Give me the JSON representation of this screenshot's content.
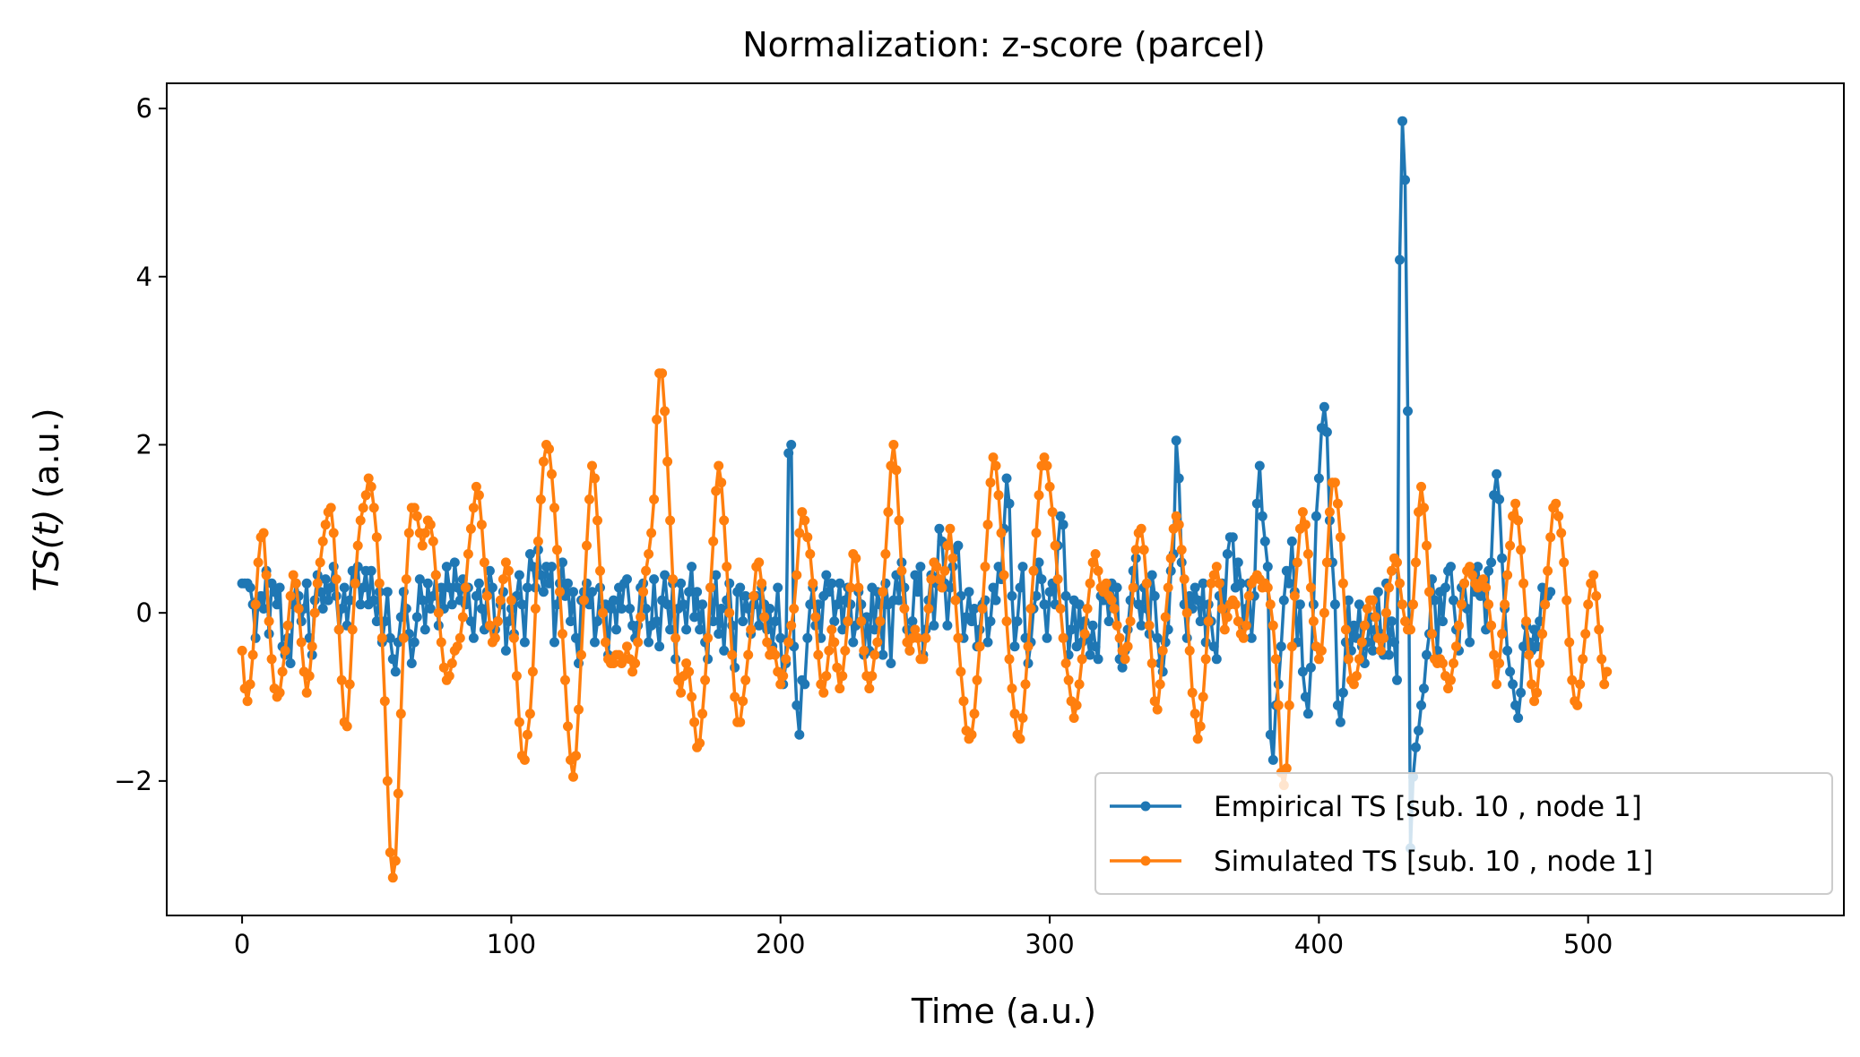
{
  "chart_data": {
    "type": "line",
    "title": "Normalization: z-score (parcel)",
    "xlabel": "Time (a.u.)",
    "ylabel_italic": "TS(t)",
    "ylabel_rest": " (a.u.)",
    "xlim": [
      -28,
      595
    ],
    "ylim": [
      -3.6,
      6.3
    ],
    "xticks": [
      0,
      100,
      200,
      300,
      400,
      500
    ],
    "yticks": [
      -2,
      0,
      2,
      4,
      6
    ],
    "yticks_display": [
      "−2",
      "0",
      "2",
      "4",
      "6"
    ],
    "legend_position": "lower right",
    "series": [
      {
        "name": "Empirical TS [sub. 10 , node 1]",
        "color": "#1f77b4",
        "values": [
          0.35,
          0.35,
          0.35,
          0.3,
          0.1,
          -0.3,
          0.15,
          0.2,
          0.05,
          0.5,
          -0.25,
          0.35,
          0.25,
          0.1,
          0.3,
          -0.4,
          -0.5,
          -0.3,
          -0.6,
          0.1,
          0.35,
          0.2,
          -0.1,
          0.05,
          0.35,
          -0.3,
          -0.5,
          0.15,
          0.45,
          0.25,
          0.05,
          0.4,
          0.15,
          0.3,
          0.55,
          0.2,
          -0.2,
          0.05,
          0.3,
          -0.15,
          0.15,
          0.5,
          0.35,
          0.55,
          0.1,
          0.3,
          0.5,
          0.1,
          0.5,
          0.15,
          -0.1,
          0.25,
          -0.35,
          -0.1,
          0.25,
          -0.3,
          -0.55,
          -0.7,
          -0.35,
          -0.05,
          0.25,
          0.05,
          -0.25,
          -0.6,
          -0.35,
          -0.05,
          0.4,
          0.15,
          -0.2,
          0.35,
          0.05,
          0.2,
          0.45,
          -0.15,
          0.3,
          0.05,
          0.55,
          0.3,
          0.1,
          0.6,
          0.3,
          0.15,
          0.4,
          0.1,
          0.3,
          -0.1,
          -0.3,
          0.2,
          0.35,
          0.05,
          -0.2,
          0.25,
          0.5,
          0.3,
          -0.2,
          -0.1,
          0.1,
          0.25,
          -0.45,
          -0.1,
          0.05,
          -0.25,
          0.2,
          0.45,
          0.1,
          -0.35,
          0.3,
          0.7,
          0.55,
          0.3,
          0.75,
          0.45,
          0.25,
          0.55,
          0.35,
          0.55,
          -0.35,
          0.1,
          0.35,
          0.6,
          0.2,
          0.35,
          -0.1,
          0.25,
          -0.3,
          -0.6,
          0.15,
          0.25,
          0.35,
          0.1,
          0.25,
          -0.35,
          -0.1,
          0.3,
          0.05,
          0.1,
          -0.5,
          0.05,
          0.15,
          -0.2,
          0.3,
          0.05,
          0.35,
          0.4,
          0.05,
          -0.15,
          -0.3,
          -0.15,
          0.3,
          0.35,
          0.05,
          -0.35,
          -0.15,
          0.4,
          -0.1,
          -0.4,
          0.15,
          0.45,
          0.1,
          -0.2,
          0.35,
          -0.55,
          0.05,
          0.35,
          0.1,
          -0.2,
          0.25,
          0.55,
          -0.05,
          0.25,
          -0.2,
          0.1,
          -0.35,
          -0.55,
          0.3,
          -0.1,
          0.45,
          -0.25,
          0.05,
          -0.45,
          0.15,
          0.35,
          -0.15,
          -0.65,
          0.25,
          0.3,
          -0.1,
          0.2,
          0.05,
          -0.25,
          0.1,
          0.2,
          -0.15,
          0.3,
          0.1,
          -0.2,
          0.05,
          -0.4,
          -0.1,
          0.3,
          -0.3,
          -0.85,
          -0.6,
          1.9,
          2.0,
          -0.4,
          -1.1,
          -1.45,
          -0.8,
          -0.85,
          -0.3,
          0.1,
          0.3,
          -0.15,
          0.1,
          -0.3,
          0.2,
          0.45,
          0.25,
          0.35,
          -0.1,
          0.1,
          0.35,
          -0.2,
          0.15,
          0.3,
          0.1,
          -0.35,
          -0.15,
          0.25,
          0.1,
          -0.5,
          -0.05,
          -0.45,
          0.3,
          -0.2,
          0.25,
          0.1,
          -0.5,
          0.35,
          0.1,
          -0.6,
          0.15,
          0.45,
          0.15,
          0.6,
          0.3,
          -0.2,
          -0.45,
          -0.1,
          0.45,
          0.25,
          0.55,
          -0.5,
          -0.2,
          0.15,
          0.45,
          -0.15,
          0.35,
          1.0,
          0.85,
          0.35,
          -0.15,
          0.3,
          0.55,
          0.75,
          0.8,
          0.2,
          -0.3,
          -0.05,
          0.25,
          -0.1,
          0.05,
          -0.4,
          -0.2,
          0.1,
          0.15,
          -0.35,
          -0.1,
          0.3,
          0.15,
          0.55,
          0.4,
          1.0,
          1.6,
          1.3,
          0.2,
          -0.4,
          -0.1,
          0.3,
          0.55,
          -0.3,
          -0.6,
          -0.35,
          0.05,
          0.2,
          0.6,
          0.4,
          0.1,
          -0.3,
          0.25,
          0.35,
          0.1,
          0.8,
          1.15,
          1.05,
          0.2,
          -0.5,
          -0.2,
          0.15,
          -0.4,
          0.1,
          -0.35,
          -0.1,
          -0.3,
          -0.5,
          -0.15,
          -0.4,
          -0.55,
          0.2,
          0.15,
          0.25,
          -0.1,
          0.35,
          0.05,
          0.3,
          -0.55,
          -0.65,
          -0.45,
          -0.2,
          0.15,
          0.5,
          0.65,
          0.1,
          -0.15,
          0.3,
          0.05,
          -0.25,
          0.45,
          0.2,
          -0.3,
          -0.6,
          -0.7,
          -0.35,
          -0.2,
          0.5,
          0.7,
          2.05,
          1.6,
          0.6,
          0.1,
          -0.3,
          0.2,
          0.05,
          0.3,
          0.15,
          -0.1,
          0.35,
          -0.35,
          0.1,
          -0.1,
          -0.4,
          -0.55,
          0.2,
          0.35,
          0.05,
          0.7,
          0.9,
          0.9,
          0.3,
          0.6,
          0.35,
          -0.15,
          0.05,
          0.35,
          -0.3,
          0.2,
          1.3,
          1.75,
          1.15,
          0.85,
          0.55,
          -1.45,
          -1.75,
          -1.1,
          -0.85,
          -0.4,
          0.15,
          0.5,
          0.35,
          0.85,
          0.25,
          -0.35,
          0.1,
          -0.7,
          -1.0,
          -1.2,
          -0.65,
          0.1,
          1.15,
          1.6,
          2.2,
          2.45,
          2.15,
          1.1,
          0.6,
          0.1,
          -1.1,
          -1.3,
          -0.95,
          -0.35,
          0.15,
          -0.45,
          -0.15,
          -0.3,
          0.1,
          -0.4,
          -0.6,
          -0.35,
          -0.05,
          -0.45,
          -0.2,
          0.25,
          -0.25,
          -0.5,
          0.35,
          -0.5,
          -0.1,
          -0.35,
          -0.8,
          4.2,
          5.85,
          5.15,
          2.4,
          -2.8,
          -1.95,
          -1.6,
          -1.4,
          -1.1,
          -0.9,
          -0.5,
          -0.25,
          0.4,
          0.15,
          -0.45,
          0.25,
          -0.1,
          0.3,
          0.5,
          0.55,
          0.15,
          -0.2,
          -0.45,
          0.3,
          0.35,
          0.05,
          -0.35,
          0.5,
          0.25,
          0.55,
          0.2,
          0.35,
          -0.2,
          0.5,
          0.6,
          1.4,
          1.65,
          1.35,
          0.65,
          0.05,
          -0.45,
          -0.7,
          -0.85,
          -1.1,
          -1.25,
          -0.95,
          -0.4,
          -0.15,
          -0.35,
          -0.45,
          -0.2,
          -0.4,
          -0.1,
          0.3,
          0.1,
          0.2,
          0.25
        ]
      },
      {
        "name": "Simulated TS [sub. 10 , node 1]",
        "color": "#ff7f0e",
        "values": [
          -0.45,
          -0.9,
          -1.05,
          -0.85,
          -0.5,
          0.1,
          0.6,
          0.9,
          0.95,
          0.45,
          -0.1,
          -0.55,
          -0.9,
          -1.0,
          -0.95,
          -0.7,
          -0.45,
          -0.15,
          0.2,
          0.45,
          0.35,
          0.05,
          -0.35,
          -0.7,
          -0.95,
          -0.75,
          -0.4,
          0.0,
          0.35,
          0.6,
          0.85,
          1.05,
          1.2,
          1.25,
          0.95,
          0.4,
          -0.2,
          -0.8,
          -1.3,
          -1.35,
          -0.85,
          -0.2,
          0.35,
          0.8,
          1.1,
          1.25,
          1.4,
          1.6,
          1.5,
          1.25,
          0.9,
          0.35,
          -0.3,
          -1.05,
          -2.0,
          -2.85,
          -3.15,
          -2.95,
          -2.15,
          -1.2,
          -0.3,
          0.4,
          0.95,
          1.25,
          1.25,
          1.15,
          0.95,
          0.8,
          0.95,
          1.1,
          1.05,
          0.85,
          0.45,
          0.0,
          -0.35,
          -0.65,
          -0.8,
          -0.75,
          -0.6,
          -0.45,
          -0.4,
          -0.3,
          -0.05,
          0.3,
          0.7,
          1.0,
          1.25,
          1.5,
          1.4,
          1.05,
          0.6,
          0.2,
          -0.15,
          -0.35,
          -0.3,
          -0.1,
          0.15,
          0.4,
          0.6,
          0.5,
          0.15,
          -0.3,
          -0.75,
          -1.3,
          -1.7,
          -1.75,
          -1.45,
          -1.2,
          -0.7,
          0.05,
          0.85,
          1.35,
          1.8,
          2.0,
          1.95,
          1.65,
          1.25,
          0.75,
          0.25,
          -0.25,
          -0.8,
          -1.35,
          -1.75,
          -1.95,
          -1.7,
          -1.15,
          -0.5,
          0.15,
          0.8,
          1.35,
          1.75,
          1.6,
          1.1,
          0.5,
          0.0,
          -0.35,
          -0.55,
          -0.6,
          -0.6,
          -0.5,
          -0.5,
          -0.6,
          -0.55,
          -0.4,
          -0.55,
          -0.7,
          -0.6,
          -0.35,
          -0.05,
          0.25,
          0.5,
          0.7,
          0.95,
          1.35,
          2.3,
          2.85,
          2.85,
          2.4,
          1.8,
          1.1,
          0.4,
          -0.3,
          -0.8,
          -0.95,
          -0.75,
          -0.6,
          -0.7,
          -1.0,
          -1.3,
          -1.6,
          -1.55,
          -1.2,
          -0.8,
          -0.3,
          0.3,
          0.85,
          1.45,
          1.75,
          1.55,
          1.1,
          0.55,
          0.0,
          -0.5,
          -1.0,
          -1.3,
          -1.3,
          -1.05,
          -0.8,
          -0.5,
          -0.2,
          0.2,
          0.55,
          0.6,
          0.35,
          -0.05,
          -0.35,
          -0.5,
          -0.45,
          -0.5,
          -0.7,
          -0.85,
          -0.75,
          -0.55,
          -0.35,
          -0.15,
          0.05,
          0.45,
          0.95,
          1.2,
          1.1,
          0.9,
          0.7,
          0.35,
          -0.05,
          -0.5,
          -0.85,
          -0.95,
          -0.75,
          -0.45,
          -0.2,
          -0.35,
          -0.65,
          -0.9,
          -0.75,
          -0.45,
          -0.1,
          0.3,
          0.7,
          0.65,
          0.3,
          -0.1,
          -0.45,
          -0.75,
          -0.9,
          -0.75,
          -0.5,
          -0.35,
          -0.1,
          0.25,
          0.7,
          1.2,
          1.75,
          2.0,
          1.7,
          1.1,
          0.5,
          0.05,
          -0.35,
          -0.45,
          -0.3,
          -0.2,
          -0.3,
          -0.55,
          -0.55,
          -0.3,
          0.05,
          0.4,
          0.6,
          0.55,
          0.4,
          0.3,
          0.5,
          0.8,
          1.0,
          0.65,
          0.15,
          -0.3,
          -0.7,
          -1.05,
          -1.4,
          -1.5,
          -1.45,
          -1.2,
          -0.8,
          -0.4,
          0.05,
          0.55,
          1.05,
          1.55,
          1.85,
          1.75,
          1.4,
          0.95,
          0.45,
          -0.1,
          -0.55,
          -0.9,
          -1.2,
          -1.45,
          -1.5,
          -1.25,
          -0.85,
          -0.4,
          0.05,
          0.5,
          0.95,
          1.4,
          1.75,
          1.85,
          1.75,
          1.5,
          1.2,
          0.8,
          0.4,
          0.05,
          -0.3,
          -0.6,
          -0.8,
          -1.05,
          -1.25,
          -1.1,
          -0.85,
          -0.55,
          -0.25,
          0.05,
          0.35,
          0.6,
          0.7,
          0.5,
          0.3,
          0.25,
          0.35,
          0.2,
          0.15,
          0.05,
          -0.15,
          -0.3,
          -0.45,
          -0.55,
          -0.4,
          -0.1,
          0.3,
          0.75,
          0.95,
          1.0,
          0.75,
          0.35,
          -0.15,
          -0.6,
          -1.05,
          -1.15,
          -0.85,
          -0.45,
          -0.05,
          0.3,
          0.65,
          1.0,
          1.15,
          1.05,
          0.75,
          0.4,
          0.0,
          -0.45,
          -0.95,
          -1.2,
          -1.5,
          -1.35,
          -1.0,
          -0.55,
          -0.1,
          0.35,
          0.45,
          0.55,
          0.35,
          0.05,
          -0.2,
          -0.05,
          0.1,
          0.15,
          0.1,
          -0.1,
          -0.25,
          -0.3,
          -0.15,
          0.2,
          0.35,
          0.4,
          0.45,
          0.4,
          0.3,
          0.35,
          0.3,
          0.1,
          -0.15,
          -0.55,
          -1.1,
          -1.9,
          -2.05,
          -1.85,
          -1.1,
          -0.4,
          0.2,
          0.6,
          1.0,
          1.2,
          1.05,
          0.7,
          0.3,
          -0.1,
          -0.4,
          -0.55,
          -0.45,
          0.0,
          0.6,
          1.2,
          1.55,
          1.55,
          1.3,
          0.9,
          0.35,
          -0.2,
          -0.55,
          -0.8,
          -0.85,
          -0.75,
          -0.55,
          -0.35,
          -0.15,
          0.05,
          0.15,
          0.15,
          -0.05,
          -0.3,
          -0.45,
          -0.3,
          0.0,
          0.3,
          0.5,
          0.65,
          0.6,
          0.35,
          0.1,
          -0.1,
          -0.2,
          -0.2,
          0.1,
          0.6,
          1.2,
          1.5,
          1.25,
          0.8,
          0.25,
          -0.25,
          -0.55,
          -0.6,
          -0.55,
          -0.6,
          -0.75,
          -0.9,
          -0.8,
          -0.6,
          -0.4,
          -0.15,
          0.1,
          0.35,
          0.5,
          0.55,
          0.45,
          0.35,
          0.3,
          0.35,
          0.4,
          0.3,
          0.1,
          -0.15,
          -0.5,
          -0.85,
          -0.6,
          -0.25,
          0.1,
          0.45,
          0.8,
          1.15,
          1.3,
          1.1,
          0.75,
          0.35,
          -0.1,
          -0.5,
          -0.85,
          -1.05,
          -0.95,
          -0.6,
          -0.25,
          0.1,
          0.5,
          0.9,
          1.25,
          1.3,
          1.15,
          0.95,
          0.6,
          0.15,
          -0.35,
          -0.8,
          -1.05,
          -1.1,
          -0.85,
          -0.55,
          -0.25,
          0.1,
          0.35,
          0.45,
          0.2,
          -0.2,
          -0.55,
          -0.85,
          -0.7
        ]
      }
    ]
  }
}
